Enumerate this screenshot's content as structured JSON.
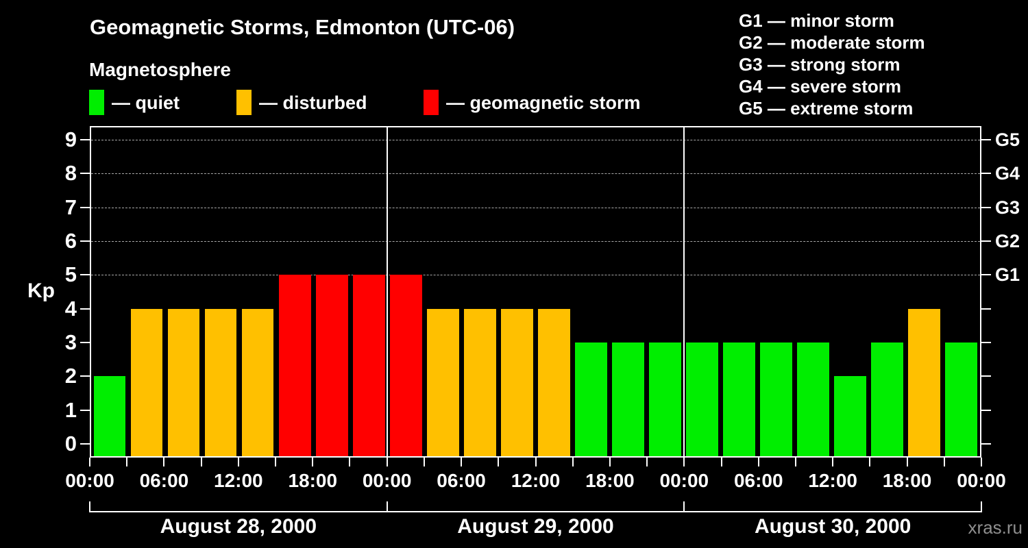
{
  "title": "Geomagnetic Storms, Edmonton (UTC-06)",
  "subtitle": "Magnetosphere",
  "legend": {
    "quiet": "— quiet",
    "disturbed": "— disturbed",
    "storm": "— geomagnetic storm"
  },
  "g_legend": [
    "G1 — minor storm",
    "G2 — moderate storm",
    "G3 — strong storm",
    "G4 — severe storm",
    "G5 — extreme storm"
  ],
  "watermark": "xras.ru",
  "chart_data": {
    "type": "bar",
    "title": "Geomagnetic Storms, Edmonton (UTC-06)",
    "ylabel": "Kp",
    "ylim": [
      0,
      9
    ],
    "y_ticks": [
      0,
      1,
      2,
      3,
      4,
      5,
      6,
      7,
      8,
      9
    ],
    "grid_levels": [
      5,
      6,
      7,
      8,
      9
    ],
    "right_axis": [
      {
        "kp": 5,
        "label": "G1"
      },
      {
        "kp": 6,
        "label": "G2"
      },
      {
        "kp": 7,
        "label": "G3"
      },
      {
        "kp": 8,
        "label": "G4"
      },
      {
        "kp": 9,
        "label": "G5"
      }
    ],
    "hours_per_bar": 3,
    "x_tick_interval_hours": 3,
    "x_label_interval_hours": 6,
    "x_tick_labels": [
      "00:00",
      "06:00",
      "12:00",
      "18:00",
      "00:00",
      "06:00",
      "12:00",
      "18:00",
      "00:00",
      "06:00",
      "12:00",
      "18:00",
      "00:00"
    ],
    "days": [
      {
        "date": "August 28, 2000",
        "values": [
          2,
          4,
          4,
          4,
          4,
          5,
          5,
          5
        ]
      },
      {
        "date": "August 29, 2000",
        "values": [
          5,
          4,
          4,
          4,
          4,
          3,
          3,
          3
        ]
      },
      {
        "date": "August 30, 2000",
        "values": [
          3,
          3,
          3,
          3,
          2,
          3,
          4,
          3
        ]
      }
    ],
    "colors": {
      "quiet": "#00ee00",
      "disturbed": "#ffc000",
      "storm": "#ff0000"
    },
    "thresholds": {
      "disturbed_min_kp": 4,
      "storm_min_kp": 5
    },
    "legend_position": "top",
    "grid": "dashed horizontal at G-storm levels only"
  }
}
